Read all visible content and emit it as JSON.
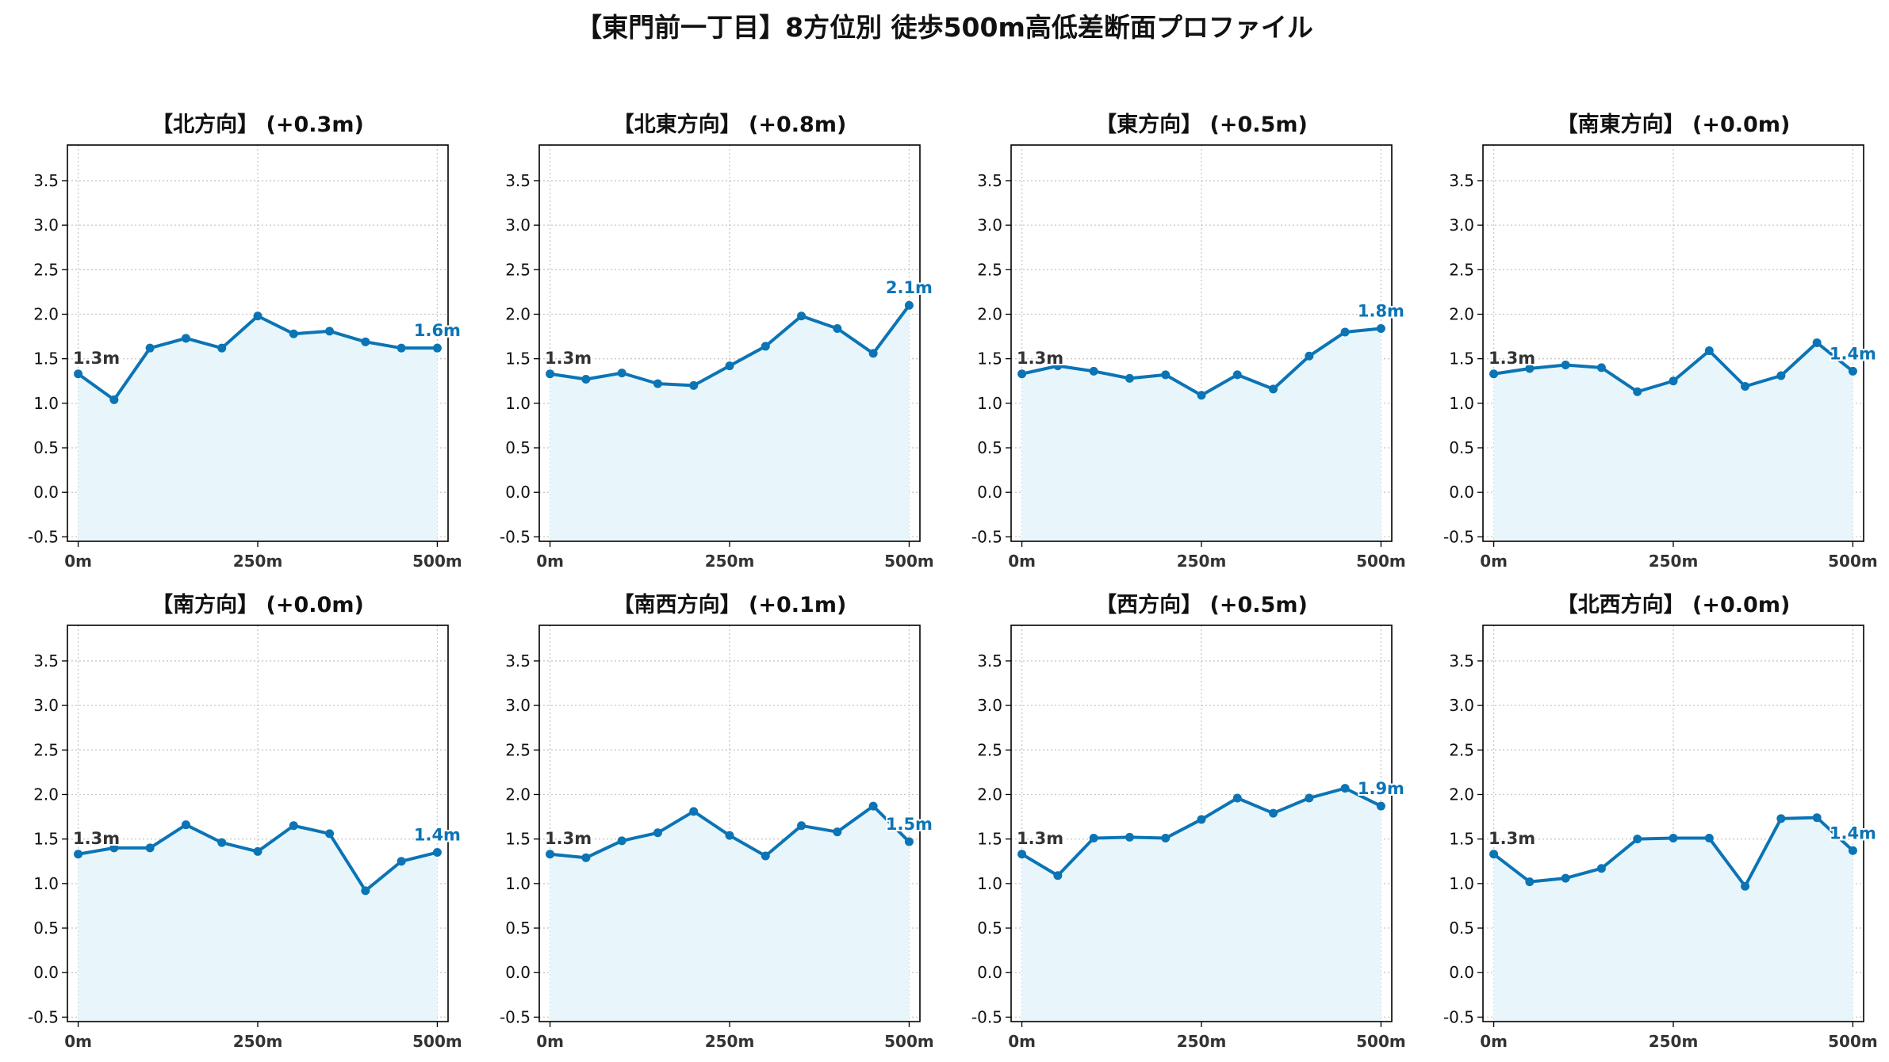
{
  "title": "【東門前一丁目】8方位別 徒歩500m高低差断面プロファイル",
  "colors": {
    "line": "#0b74b5",
    "fill": "#e8f6fc",
    "start_label": "#333333",
    "end_label": "#0b74b5",
    "grid": "#c8c8c8"
  },
  "chart_data": [
    {
      "type": "line",
      "title": "【北方向】 (+0.3m)",
      "x": [
        0,
        50,
        100,
        150,
        200,
        250,
        300,
        350,
        400,
        450,
        500
      ],
      "values": [
        1.33,
        1.04,
        1.62,
        1.73,
        1.62,
        1.98,
        1.78,
        1.81,
        1.69,
        1.62,
        1.62
      ],
      "start_label": "1.3m",
      "end_label": "1.6m",
      "xlim": [
        -15,
        515
      ],
      "ylim": [
        -0.55,
        3.9
      ],
      "xticks": [
        0,
        250,
        500
      ],
      "xtick_labels": [
        "0m",
        "250m",
        "500m"
      ],
      "yticks": [
        -0.5,
        0.0,
        0.5,
        1.0,
        1.5,
        2.0,
        2.5,
        3.0,
        3.5
      ],
      "ytick_labels": [
        "-0.5",
        "0.0",
        "0.5",
        "1.0",
        "1.5",
        "2.0",
        "2.5",
        "3.0",
        "3.5"
      ],
      "grid": true
    },
    {
      "type": "line",
      "title": "【北東方向】 (+0.8m)",
      "x": [
        0,
        50,
        100,
        150,
        200,
        250,
        300,
        350,
        400,
        450,
        500
      ],
      "values": [
        1.33,
        1.27,
        1.34,
        1.22,
        1.2,
        1.42,
        1.64,
        1.98,
        1.84,
        1.56,
        2.1
      ],
      "start_label": "1.3m",
      "end_label": "2.1m",
      "xlim": [
        -15,
        515
      ],
      "ylim": [
        -0.55,
        3.9
      ],
      "xticks": [
        0,
        250,
        500
      ],
      "xtick_labels": [
        "0m",
        "250m",
        "500m"
      ],
      "yticks": [
        -0.5,
        0.0,
        0.5,
        1.0,
        1.5,
        2.0,
        2.5,
        3.0,
        3.5
      ],
      "ytick_labels": [
        "-0.5",
        "0.0",
        "0.5",
        "1.0",
        "1.5",
        "2.0",
        "2.5",
        "3.0",
        "3.5"
      ],
      "grid": true
    },
    {
      "type": "line",
      "title": "【東方向】 (+0.5m)",
      "x": [
        0,
        50,
        100,
        150,
        200,
        250,
        300,
        350,
        400,
        450,
        500
      ],
      "values": [
        1.33,
        1.42,
        1.36,
        1.28,
        1.32,
        1.09,
        1.32,
        1.16,
        1.53,
        1.8,
        1.84
      ],
      "start_label": "1.3m",
      "end_label": "1.8m",
      "xlim": [
        -15,
        515
      ],
      "ylim": [
        -0.55,
        3.9
      ],
      "xticks": [
        0,
        250,
        500
      ],
      "xtick_labels": [
        "0m",
        "250m",
        "500m"
      ],
      "yticks": [
        -0.5,
        0.0,
        0.5,
        1.0,
        1.5,
        2.0,
        2.5,
        3.0,
        3.5
      ],
      "ytick_labels": [
        "-0.5",
        "0.0",
        "0.5",
        "1.0",
        "1.5",
        "2.0",
        "2.5",
        "3.0",
        "3.5"
      ],
      "grid": true
    },
    {
      "type": "line",
      "title": "【南東方向】 (+0.0m)",
      "x": [
        0,
        50,
        100,
        150,
        200,
        250,
        300,
        350,
        400,
        450,
        500
      ],
      "values": [
        1.33,
        1.39,
        1.43,
        1.4,
        1.13,
        1.25,
        1.59,
        1.19,
        1.31,
        1.68,
        1.36
      ],
      "start_label": "1.3m",
      "end_label": "1.4m",
      "xlim": [
        -15,
        515
      ],
      "ylim": [
        -0.55,
        3.9
      ],
      "xticks": [
        0,
        250,
        500
      ],
      "xtick_labels": [
        "0m",
        "250m",
        "500m"
      ],
      "yticks": [
        -0.5,
        0.0,
        0.5,
        1.0,
        1.5,
        2.0,
        2.5,
        3.0,
        3.5
      ],
      "ytick_labels": [
        "-0.5",
        "0.0",
        "0.5",
        "1.0",
        "1.5",
        "2.0",
        "2.5",
        "3.0",
        "3.5"
      ],
      "grid": true
    },
    {
      "type": "line",
      "title": "【南方向】 (+0.0m)",
      "x": [
        0,
        50,
        100,
        150,
        200,
        250,
        300,
        350,
        400,
        450,
        500
      ],
      "values": [
        1.33,
        1.4,
        1.4,
        1.66,
        1.46,
        1.36,
        1.65,
        1.56,
        0.92,
        1.25,
        1.35
      ],
      "start_label": "1.3m",
      "end_label": "1.4m",
      "xlim": [
        -15,
        515
      ],
      "ylim": [
        -0.55,
        3.9
      ],
      "xticks": [
        0,
        250,
        500
      ],
      "xtick_labels": [
        "0m",
        "250m",
        "500m"
      ],
      "yticks": [
        -0.5,
        0.0,
        0.5,
        1.0,
        1.5,
        2.0,
        2.5,
        3.0,
        3.5
      ],
      "ytick_labels": [
        "-0.5",
        "0.0",
        "0.5",
        "1.0",
        "1.5",
        "2.0",
        "2.5",
        "3.0",
        "3.5"
      ],
      "grid": true
    },
    {
      "type": "line",
      "title": "【南西方向】 (+0.1m)",
      "x": [
        0,
        50,
        100,
        150,
        200,
        250,
        300,
        350,
        400,
        450,
        500
      ],
      "values": [
        1.33,
        1.29,
        1.48,
        1.57,
        1.81,
        1.54,
        1.31,
        1.65,
        1.58,
        1.87,
        1.47
      ],
      "start_label": "1.3m",
      "end_label": "1.5m",
      "xlim": [
        -15,
        515
      ],
      "ylim": [
        -0.55,
        3.9
      ],
      "xticks": [
        0,
        250,
        500
      ],
      "xtick_labels": [
        "0m",
        "250m",
        "500m"
      ],
      "yticks": [
        -0.5,
        0.0,
        0.5,
        1.0,
        1.5,
        2.0,
        2.5,
        3.0,
        3.5
      ],
      "ytick_labels": [
        "-0.5",
        "0.0",
        "0.5",
        "1.0",
        "1.5",
        "2.0",
        "2.5",
        "3.0",
        "3.5"
      ],
      "grid": true
    },
    {
      "type": "line",
      "title": "【西方向】 (+0.5m)",
      "x": [
        0,
        50,
        100,
        150,
        200,
        250,
        300,
        350,
        400,
        450,
        500
      ],
      "values": [
        1.33,
        1.09,
        1.51,
        1.52,
        1.51,
        1.72,
        1.96,
        1.79,
        1.96,
        2.07,
        1.87
      ],
      "start_label": "1.3m",
      "end_label": "1.9m",
      "xlim": [
        -15,
        515
      ],
      "ylim": [
        -0.55,
        3.9
      ],
      "xticks": [
        0,
        250,
        500
      ],
      "xtick_labels": [
        "0m",
        "250m",
        "500m"
      ],
      "yticks": [
        -0.5,
        0.0,
        0.5,
        1.0,
        1.5,
        2.0,
        2.5,
        3.0,
        3.5
      ],
      "ytick_labels": [
        "-0.5",
        "0.0",
        "0.5",
        "1.0",
        "1.5",
        "2.0",
        "2.5",
        "3.0",
        "3.5"
      ],
      "grid": true
    },
    {
      "type": "line",
      "title": "【北西方向】 (+0.0m)",
      "x": [
        0,
        50,
        100,
        150,
        200,
        250,
        300,
        350,
        400,
        450,
        500
      ],
      "values": [
        1.33,
        1.02,
        1.06,
        1.17,
        1.5,
        1.51,
        1.51,
        0.97,
        1.73,
        1.74,
        1.37
      ],
      "start_label": "1.3m",
      "end_label": "1.4m",
      "xlim": [
        -15,
        515
      ],
      "ylim": [
        -0.55,
        3.9
      ],
      "xticks": [
        0,
        250,
        500
      ],
      "xtick_labels": [
        "0m",
        "250m",
        "500m"
      ],
      "yticks": [
        -0.5,
        0.0,
        0.5,
        1.0,
        1.5,
        2.0,
        2.5,
        3.0,
        3.5
      ],
      "ytick_labels": [
        "-0.5",
        "0.0",
        "0.5",
        "1.0",
        "1.5",
        "2.0",
        "2.5",
        "3.0",
        "3.5"
      ],
      "grid": true
    }
  ]
}
